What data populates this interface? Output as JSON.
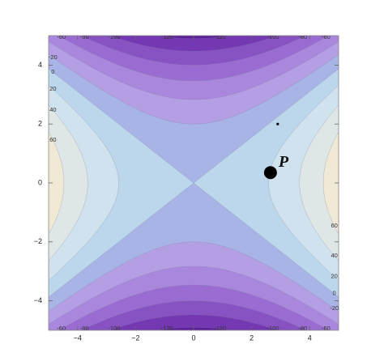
{
  "chart_data": {
    "type": "contour",
    "xlim": [
      -5,
      5
    ],
    "ylim": [
      -5,
      5
    ],
    "xticks": [
      {
        "value": -4,
        "label": "−4"
      },
      {
        "value": -2,
        "label": "−2"
      },
      0,
      2,
      4
    ],
    "yticks": [
      {
        "value": -4,
        "label": "−4"
      },
      {
        "value": -2,
        "label": "−2"
      },
      0,
      2,
      4
    ],
    "levels": [
      -120,
      -100,
      -80,
      -60,
      -40,
      -20,
      0,
      20,
      40,
      60
    ],
    "band_colors": [
      "#5d1f9c",
      "#7438b2",
      "#8752c2",
      "#9a6cd2",
      "#a987dc",
      "#b49ee4",
      "#a8b4e6",
      "#bcd7ec",
      "#cfe2ee",
      "#dfe6e6",
      "#efe9d6"
    ],
    "points": [
      {
        "label": "P",
        "x": 2.65,
        "y": 0.35
      },
      {
        "x": 2.9,
        "y": 2.0
      }
    ]
  }
}
